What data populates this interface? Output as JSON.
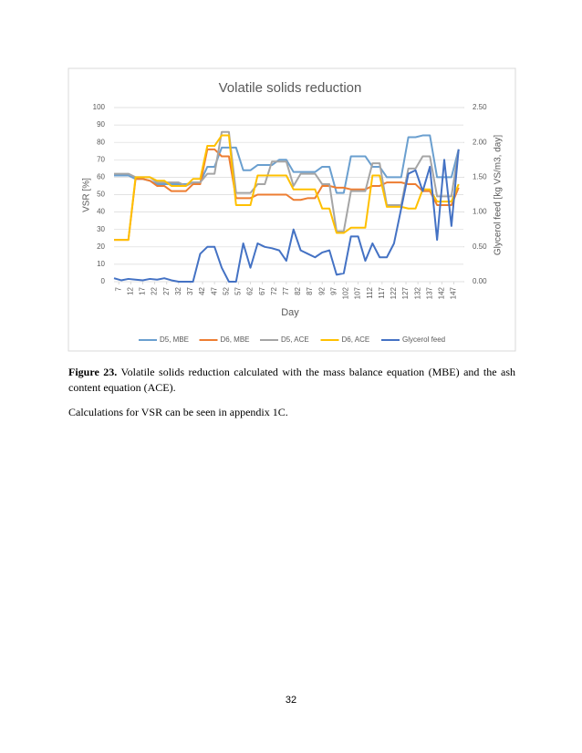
{
  "chart_data": {
    "type": "line",
    "title": "Volatile solids reduction",
    "x_label": "Day",
    "y_label": "VSR [%]",
    "y2_label": "Glycerol feed [kg VS/m3, day]",
    "x": [
      5,
      8,
      11,
      14,
      17,
      20,
      23,
      26,
      29,
      32,
      35,
      38,
      41,
      44,
      47,
      50,
      53,
      56,
      59,
      62,
      65,
      68,
      71,
      74,
      77,
      80,
      83,
      86,
      89,
      92,
      95,
      98,
      101,
      104,
      107,
      110,
      113,
      116,
      119,
      122,
      125,
      128,
      131,
      134,
      137,
      140,
      143,
      146,
      149
    ],
    "xlim": [
      5,
      151
    ],
    "xticks": [
      7,
      12,
      17,
      22,
      27,
      32,
      37,
      42,
      47,
      52,
      57,
      62,
      67,
      72,
      77,
      82,
      87,
      92,
      97,
      102,
      107,
      112,
      117,
      122,
      127,
      132,
      137,
      142,
      147
    ],
    "ylim": [
      0,
      100
    ],
    "yticks": [
      0,
      10,
      20,
      30,
      40,
      50,
      60,
      70,
      80,
      90,
      100
    ],
    "y2lim": [
      0,
      2.5
    ],
    "y2ticks": [
      {
        "value": 0,
        "label": "0.00"
      },
      {
        "value": 0.5,
        "label": "0.50"
      },
      {
        "value": 1,
        "label": "1.00"
      },
      {
        "value": 1.5,
        "label": "1.50"
      },
      {
        "value": 2,
        "label": "2.00"
      },
      {
        "value": 2.5,
        "label": "2.50"
      }
    ],
    "grid": true,
    "legend": "bottom",
    "series": [
      {
        "name": "D5, MBE",
        "color": "#6a9fcf",
        "values": [
          61,
          61,
          61,
          59,
          59,
          58,
          56,
          56,
          56,
          56,
          56,
          57,
          57,
          66,
          66,
          77,
          77,
          77,
          64,
          64,
          67,
          67,
          67,
          70,
          70,
          63,
          63,
          63,
          63,
          66,
          66,
          51,
          51,
          72,
          72,
          72,
          66,
          66,
          60,
          60,
          60,
          83,
          83,
          84,
          84,
          60,
          60,
          60,
          76
        ]
      },
      {
        "name": "D6, MBE",
        "color": "#ed7d31",
        "values": [
          24,
          24,
          24,
          59,
          59,
          58,
          55,
          55,
          52,
          52,
          52,
          56,
          56,
          76,
          76,
          72,
          72,
          48,
          48,
          48,
          50,
          50,
          50,
          50,
          50,
          47,
          47,
          48,
          48,
          55,
          55,
          54,
          54,
          53,
          53,
          53,
          55,
          55,
          57,
          57,
          57,
          56,
          56,
          52,
          52,
          44,
          44,
          44,
          54
        ]
      },
      {
        "name": "D5, ACE",
        "color": "#a5a5a5",
        "values": [
          62,
          62,
          62,
          60,
          60,
          60,
          57,
          57,
          57,
          57,
          55,
          57,
          57,
          62,
          62,
          86,
          86,
          51,
          51,
          51,
          56,
          56,
          69,
          69,
          69,
          55,
          62,
          62,
          62,
          56,
          56,
          29,
          29,
          52,
          52,
          52,
          68,
          68,
          44,
          44,
          44,
          65,
          65,
          72,
          72,
          49,
          49,
          49,
          76
        ]
      },
      {
        "name": "D6, ACE",
        "color": "#ffc000",
        "values": [
          24,
          24,
          24,
          60,
          60,
          60,
          58,
          58,
          55,
          55,
          55,
          59,
          59,
          78,
          78,
          84,
          84,
          44,
          44,
          44,
          61,
          61,
          61,
          61,
          61,
          53,
          53,
          53,
          53,
          42,
          42,
          28,
          28,
          31,
          31,
          31,
          61,
          61,
          43,
          43,
          43,
          42,
          42,
          53,
          53,
          46,
          46,
          46,
          56
        ]
      },
      {
        "name": "Glycerol feed",
        "color": "#4472c4",
        "axis": "y2",
        "values": [
          0.05,
          0.02,
          0.04,
          0.03,
          0.02,
          0.04,
          0.03,
          0.05,
          0.02,
          0,
          0,
          0,
          0.4,
          0.5,
          0.5,
          0.2,
          0,
          0,
          0.55,
          0.2,
          0.55,
          0.5,
          0.48,
          0.45,
          0.3,
          0.75,
          0.45,
          0.4,
          0.35,
          0.42,
          0.45,
          0.1,
          0.12,
          0.65,
          0.65,
          0.3,
          0.55,
          0.35,
          0.35,
          0.55,
          1.05,
          1.55,
          1.6,
          1.3,
          1.65,
          0.6,
          1.75,
          0.8,
          1.9
        ]
      }
    ]
  },
  "caption_label": "Figure 23.",
  "caption_text": "Volatile solids reduction calculated with the mass balance equation (MBE) and the ash content equation (ACE).",
  "paragraph": "Calculations for VSR can be seen in appendix 1C.",
  "page_number": "32"
}
